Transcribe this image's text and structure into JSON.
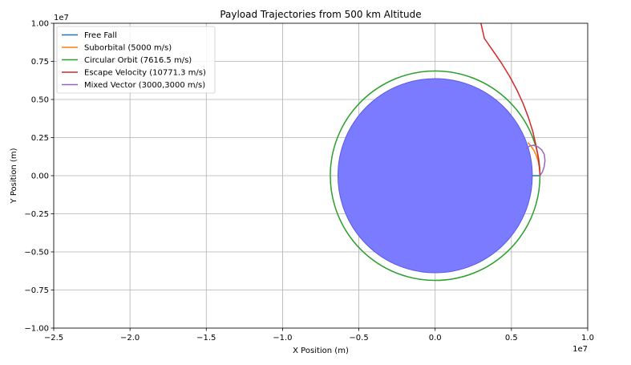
{
  "chart_data": {
    "type": "line",
    "title": "Payload Trajectories from 500 km Altitude",
    "xlabel": "X Position (m)",
    "ylabel": "Y Position (m)",
    "x_offset_label": "1e7",
    "y_offset_label": "1e7",
    "xlim": [
      -2.5,
      1.0
    ],
    "ylim": [
      -1.0,
      1.0
    ],
    "x_ticks": [
      -2.5,
      -2.0,
      -1.5,
      -1.0,
      -0.5,
      0.0,
      0.5,
      1.0
    ],
    "x_tick_labels": [
      "−2.5",
      "−2.0",
      "−1.5",
      "−1.0",
      "−0.5",
      "0.0",
      "0.5",
      "1.0"
    ],
    "y_ticks": [
      -1.0,
      -0.75,
      -0.5,
      -0.25,
      0.0,
      0.25,
      0.5,
      0.75,
      1.0
    ],
    "y_tick_labels": [
      "−1.00",
      "−0.75",
      "−0.50",
      "−0.25",
      "0.00",
      "0.25",
      "0.50",
      "0.75",
      "1.00"
    ],
    "grid": true,
    "legend_position": "top-left",
    "earth": {
      "radius": 0.6371,
      "color": "#7b7bff",
      "edge_color": "#5a5ae6"
    },
    "series": [
      {
        "name": "Free Fall",
        "color": "#1f77b4",
        "points": [
          [
            0.6871,
            0.0
          ],
          [
            0.6371,
            0.0
          ]
        ]
      },
      {
        "name": "Suborbital (5000 m/s)",
        "color": "#ff7f0e",
        "points": [
          [
            0.6871,
            0.0
          ],
          [
            0.685,
            0.04
          ],
          [
            0.677,
            0.09
          ],
          [
            0.664,
            0.13
          ],
          [
            0.648,
            0.165
          ],
          [
            0.628,
            0.195
          ],
          [
            0.61,
            0.215
          ]
        ]
      },
      {
        "name": "Circular Orbit (7616.5 m/s)",
        "color": "#2ca02c",
        "circle_radius": 0.6871
      },
      {
        "name": "Escape Velocity (10771.3 m/s)",
        "color": "#d62728",
        "points": [
          [
            0.6871,
            0.0
          ],
          [
            0.6842,
            0.05
          ],
          [
            0.676,
            0.12
          ],
          [
            0.661,
            0.2
          ],
          [
            0.64,
            0.29
          ],
          [
            0.612,
            0.38
          ],
          [
            0.578,
            0.47
          ],
          [
            0.537,
            0.56
          ],
          [
            0.489,
            0.65
          ],
          [
            0.434,
            0.74
          ],
          [
            0.372,
            0.83
          ],
          [
            0.323,
            0.9
          ],
          [
            0.3,
            1.0
          ]
        ]
      },
      {
        "name": "Mixed Vector (3000,3000 m/s)",
        "color": "#9467bd",
        "points": [
          [
            0.6871,
            0.0
          ],
          [
            0.703,
            0.025
          ],
          [
            0.715,
            0.06
          ],
          [
            0.72,
            0.1
          ],
          [
            0.715,
            0.14
          ],
          [
            0.698,
            0.17
          ],
          [
            0.673,
            0.19
          ],
          [
            0.645,
            0.2
          ],
          [
            0.62,
            0.195
          ],
          [
            0.6,
            0.18
          ]
        ]
      }
    ]
  }
}
